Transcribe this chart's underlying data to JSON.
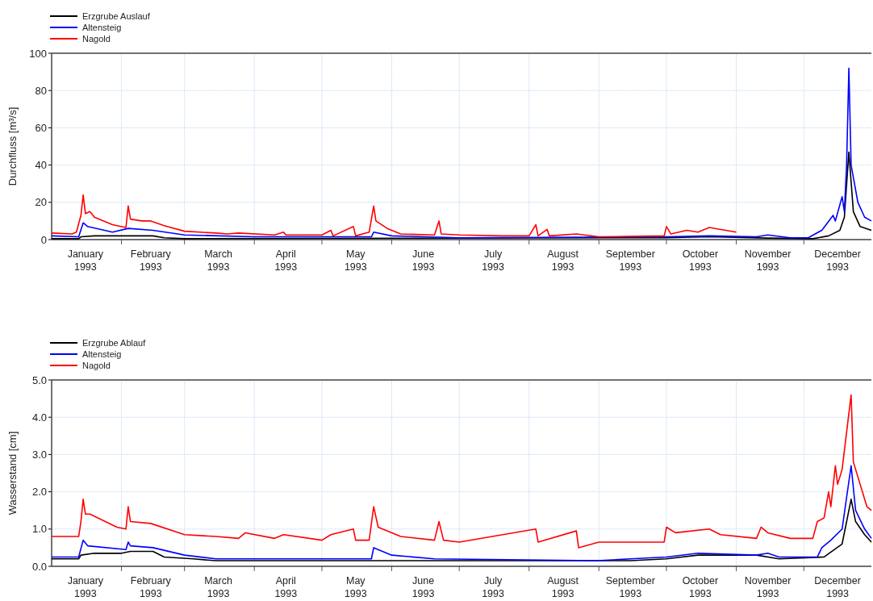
{
  "chart_data": [
    {
      "type": "line",
      "ylabel": "Durchfluss [m³/s]",
      "legend": "top left",
      "grid": true,
      "xlim": [
        "1993-01-01",
        "1993-12-31"
      ],
      "ylim": [
        0,
        100
      ],
      "yticks": [
        0,
        20,
        40,
        60,
        80,
        100
      ],
      "xticks": [
        {
          "value": "1993-02-01",
          "label": null
        },
        {
          "value": "1993-03-01",
          "label": null
        },
        {
          "value": "1993-04-01",
          "label": null
        },
        {
          "value": "1993-05-01",
          "label": null
        },
        {
          "value": "1993-06-01",
          "label": null
        },
        {
          "value": "1993-07-01",
          "label": null
        },
        {
          "value": "1993-08-01",
          "label": null
        },
        {
          "value": "1993-09-01",
          "label": null
        },
        {
          "value": "1993-10-01",
          "label": null
        },
        {
          "value": "1993-11-01",
          "label": null
        },
        {
          "value": "1993-12-01",
          "label": null
        },
        {
          "value": "1993-01-16",
          "label": "January 1993"
        },
        {
          "value": "1993-02-14",
          "label": "February 1993"
        },
        {
          "value": "1993-03-16",
          "label": "March 1993"
        },
        {
          "value": "1993-04-15",
          "label": "April 1993"
        },
        {
          "value": "1993-05-16",
          "label": "May 1993"
        },
        {
          "value": "1993-06-15",
          "label": "June 1993"
        },
        {
          "value": "1993-07-16",
          "label": "July 1993"
        },
        {
          "value": "1993-08-16",
          "label": "August 1993"
        },
        {
          "value": "1993-09-15",
          "label": "September 1993"
        },
        {
          "value": "1993-10-16",
          "label": "October 1993"
        },
        {
          "value": "1993-11-15",
          "label": "November 1993"
        },
        {
          "value": "1993-12-16",
          "label": "December 1993"
        }
      ],
      "series": [
        {
          "name": "Erzgrube Auslauf",
          "color": "#000000",
          "x": [
            "1993-01-01",
            "1993-01-13",
            "1993-01-14",
            "1993-01-20",
            "1993-02-15",
            "1993-02-20",
            "1993-03-01",
            "1993-10-01",
            "1993-10-20",
            "1993-11-15",
            "1993-12-05",
            "1993-12-12",
            "1993-12-17",
            "1993-12-19",
            "1993-12-21",
            "1993-12-23",
            "1993-12-26",
            "1993-12-31"
          ],
          "values": [
            0.5,
            0.5,
            1.5,
            2,
            2,
            1,
            0.5,
            1,
            1.5,
            0.8,
            0.5,
            2,
            5,
            12,
            47,
            15,
            7,
            5
          ]
        },
        {
          "name": "Altensteig",
          "color": "#0000ff",
          "x": [
            "1993-01-01",
            "1993-01-13",
            "1993-01-15",
            "1993-01-17",
            "1993-01-28",
            "1993-02-04",
            "1993-02-15",
            "1993-03-01",
            "1993-04-01",
            "1993-05-23",
            "1993-05-24",
            "1993-06-01",
            "1993-07-01",
            "1993-10-01",
            "1993-10-20",
            "1993-11-10",
            "1993-11-15",
            "1993-11-25",
            "1993-12-03",
            "1993-12-06",
            "1993-12-09",
            "1993-12-14",
            "1993-12-15",
            "1993-12-18",
            "1993-12-19",
            "1993-12-20",
            "1993-12-21",
            "1993-12-22",
            "1993-12-25",
            "1993-12-28",
            "1993-12-31"
          ],
          "values": [
            2,
            1.5,
            9,
            7,
            4,
            6,
            5,
            2.5,
            1.5,
            1.5,
            4,
            2,
            1,
            1.5,
            2,
            1.5,
            2.5,
            1,
            1,
            3,
            5,
            13,
            10,
            23,
            15,
            40,
            92,
            40,
            20,
            12,
            10
          ]
        },
        {
          "name": "Nagold",
          "color": "#ff0000",
          "x": [
            "1993-01-01",
            "1993-01-10",
            "1993-01-12",
            "1993-01-14",
            "1993-01-15",
            "1993-01-16",
            "1993-01-18",
            "1993-01-20",
            "1993-01-28",
            "1993-02-03",
            "1993-02-04",
            "1993-02-05",
            "1993-02-10",
            "1993-02-14",
            "1993-02-20",
            "1993-03-01",
            "1993-03-15",
            "1993-03-20",
            "1993-03-25",
            "1993-04-10",
            "1993-04-14",
            "1993-04-15",
            "1993-05-01",
            "1993-05-05",
            "1993-05-06",
            "1993-05-15",
            "1993-05-16",
            "1993-05-22",
            "1993-05-24",
            "1993-05-25",
            "1993-05-30",
            "1993-06-05",
            "1993-06-20",
            "1993-06-22",
            "1993-06-23",
            "1993-07-01",
            "1993-07-20",
            "1993-08-01",
            "1993-08-04",
            "1993-08-05",
            "1993-08-09",
            "1993-08-10",
            "1993-08-22",
            "1993-09-01",
            "1993-09-30",
            "1993-10-01",
            "1993-10-03",
            "1993-10-10",
            "1993-10-15",
            "1993-10-20",
            "1993-11-01"
          ],
          "values": [
            3.5,
            3,
            4,
            13,
            24,
            14,
            15,
            12,
            8,
            6.5,
            18,
            11,
            10,
            10,
            7.5,
            4.5,
            3.5,
            3,
            3.5,
            2.5,
            4,
            2.5,
            2.5,
            5,
            2,
            7,
            2,
            4,
            18,
            10,
            6,
            3,
            2.5,
            10,
            3,
            2.5,
            2,
            2,
            8,
            2,
            5.5,
            2,
            3,
            1.5,
            2,
            7,
            3,
            5,
            4,
            6.5,
            4
          ]
        }
      ]
    },
    {
      "type": "line",
      "ylabel": "Wasserstand [cm]",
      "legend": "top left",
      "grid": true,
      "xlim": [
        "1993-01-01",
        "1993-12-31"
      ],
      "ylim": [
        0,
        5
      ],
      "yticks": [
        {
          "value": 0,
          "label": "0.0"
        },
        {
          "value": 1,
          "label": "1.0"
        },
        {
          "value": 2,
          "label": "2.0"
        },
        {
          "value": 3,
          "label": "3.0"
        },
        {
          "value": 4,
          "label": "4.0"
        },
        {
          "value": 5,
          "label": "5.0"
        }
      ],
      "xticks": [
        {
          "value": "1993-02-01",
          "label": null
        },
        {
          "value": "1993-03-01",
          "label": null
        },
        {
          "value": "1993-04-01",
          "label": null
        },
        {
          "value": "1993-05-01",
          "label": null
        },
        {
          "value": "1993-06-01",
          "label": null
        },
        {
          "value": "1993-07-01",
          "label": null
        },
        {
          "value": "1993-08-01",
          "label": null
        },
        {
          "value": "1993-09-01",
          "label": null
        },
        {
          "value": "1993-10-01",
          "label": null
        },
        {
          "value": "1993-11-01",
          "label": null
        },
        {
          "value": "1993-12-01",
          "label": null
        },
        {
          "value": "1993-01-16",
          "label": "January 1993"
        },
        {
          "value": "1993-02-14",
          "label": "February 1993"
        },
        {
          "value": "1993-03-16",
          "label": "March 1993"
        },
        {
          "value": "1993-04-15",
          "label": "April 1993"
        },
        {
          "value": "1993-05-16",
          "label": "May 1993"
        },
        {
          "value": "1993-06-15",
          "label": "June 1993"
        },
        {
          "value": "1993-07-16",
          "label": "July 1993"
        },
        {
          "value": "1993-08-16",
          "label": "August 1993"
        },
        {
          "value": "1993-09-15",
          "label": "September 1993"
        },
        {
          "value": "1993-10-16",
          "label": "October 1993"
        },
        {
          "value": "1993-11-15",
          "label": "November 1993"
        },
        {
          "value": "1993-12-16",
          "label": "December 1993"
        }
      ],
      "series": [
        {
          "name": "Erzgrube Ablauf",
          "color": "#000000",
          "x": [
            "1993-01-01",
            "1993-01-13",
            "1993-01-14",
            "1993-01-20",
            "1993-02-01",
            "1993-02-05",
            "1993-02-15",
            "1993-02-20",
            "1993-03-05",
            "1993-03-15",
            "1993-09-15",
            "1993-10-01",
            "1993-10-15",
            "1993-11-10",
            "1993-11-20",
            "1993-12-10",
            "1993-12-18",
            "1993-12-22",
            "1993-12-24",
            "1993-12-28",
            "1993-12-31"
          ],
          "values": [
            0.2,
            0.2,
            0.3,
            0.35,
            0.35,
            0.4,
            0.4,
            0.25,
            0.2,
            0.15,
            0.15,
            0.2,
            0.3,
            0.3,
            0.2,
            0.25,
            0.6,
            1.8,
            1.2,
            0.85,
            0.65
          ]
        },
        {
          "name": "Altensteig",
          "color": "#0000ff",
          "x": [
            "1993-01-01",
            "1993-01-13",
            "1993-01-15",
            "1993-01-17",
            "1993-02-03",
            "1993-02-04",
            "1993-02-05",
            "1993-02-15",
            "1993-03-01",
            "1993-03-15",
            "1993-05-23",
            "1993-05-24",
            "1993-06-01",
            "1993-06-20",
            "1993-08-31",
            "1993-09-15",
            "1993-10-01",
            "1993-10-15",
            "1993-11-10",
            "1993-11-15",
            "1993-11-20",
            "1993-12-07",
            "1993-12-09",
            "1993-12-13",
            "1993-12-18",
            "1993-12-22",
            "1993-12-24",
            "1993-12-28",
            "1993-12-31"
          ],
          "values": [
            0.25,
            0.25,
            0.7,
            0.55,
            0.45,
            0.65,
            0.55,
            0.5,
            0.3,
            0.2,
            0.2,
            0.5,
            0.3,
            0.2,
            0.15,
            0.2,
            0.25,
            0.35,
            0.3,
            0.35,
            0.25,
            0.25,
            0.5,
            0.7,
            1.0,
            2.7,
            1.5,
            1.0,
            0.75
          ]
        },
        {
          "name": "Nagold",
          "color": "#ff0000",
          "x": [
            "1993-01-01",
            "1993-01-13",
            "1993-01-14",
            "1993-01-15",
            "1993-01-16",
            "1993-01-18",
            "1993-01-30",
            "1993-02-03",
            "1993-02-04",
            "1993-02-05",
            "1993-02-14",
            "1993-03-01",
            "1993-03-15",
            "1993-03-25",
            "1993-03-28",
            "1993-04-10",
            "1993-04-14",
            "1993-05-01",
            "1993-05-05",
            "1993-05-15",
            "1993-05-16",
            "1993-05-22",
            "1993-05-24",
            "1993-05-26",
            "1993-06-05",
            "1993-06-20",
            "1993-06-22",
            "1993-06-24",
            "1993-07-01",
            "1993-08-04",
            "1993-08-05",
            "1993-08-22",
            "1993-08-23",
            "1993-09-01",
            "1993-09-30",
            "1993-10-01",
            "1993-10-05",
            "1993-10-20",
            "1993-10-25",
            "1993-11-10",
            "1993-11-12",
            "1993-11-15",
            "1993-11-25",
            "1993-12-05",
            "1993-12-07",
            "1993-12-10",
            "1993-12-12",
            "1993-12-13",
            "1993-12-15",
            "1993-12-16",
            "1993-12-18",
            "1993-12-22",
            "1993-12-23",
            "1993-12-27",
            "1993-12-29",
            "1993-12-31"
          ],
          "values": [
            0.8,
            0.8,
            1.2,
            1.8,
            1.4,
            1.4,
            1.05,
            1.0,
            1.6,
            1.2,
            1.15,
            0.85,
            0.8,
            0.75,
            0.9,
            0.75,
            0.85,
            0.7,
            0.85,
            1.0,
            0.7,
            0.7,
            1.6,
            1.05,
            0.8,
            0.7,
            1.2,
            0.7,
            0.65,
            1.0,
            0.65,
            0.95,
            0.5,
            0.65,
            0.65,
            1.05,
            0.9,
            1.0,
            0.85,
            0.75,
            1.05,
            0.9,
            0.75,
            0.75,
            1.2,
            1.3,
            2.0,
            1.6,
            2.7,
            2.2,
            2.6,
            4.6,
            2.8,
            2.0,
            1.6,
            1.5
          ]
        }
      ]
    }
  ]
}
